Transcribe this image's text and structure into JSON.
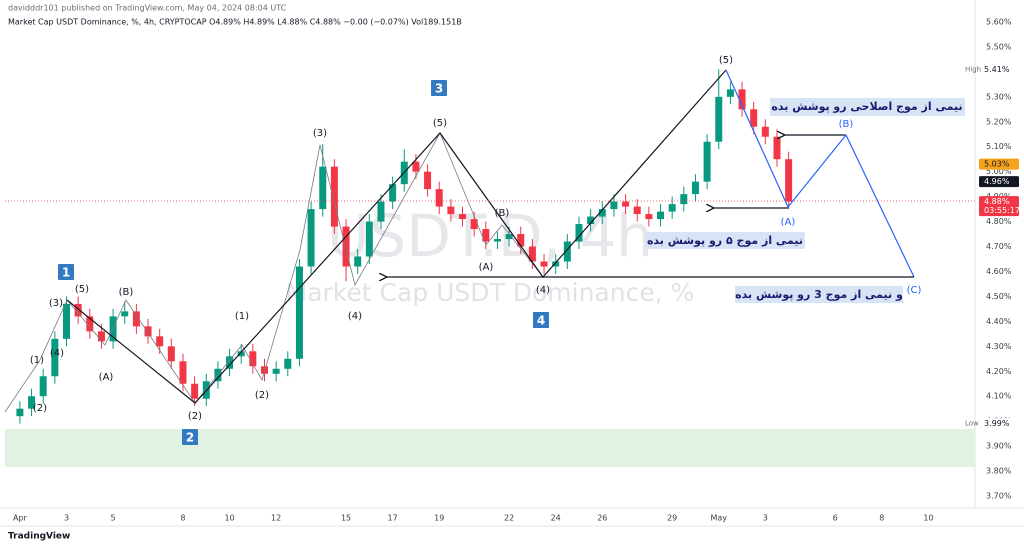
{
  "chart_data": {
    "type": "candlestick",
    "header": "davidddr101 published on TradingView.com, May 04, 2024 08:04 UTC",
    "legend": "Market Cap USDT Dominance, %, 4h, CRYPTOCAP  O4.89%  H4.89%  L4.88%  C4.88%  −0.00 (−0.07%)  Vol189.151B",
    "watermark": {
      "symbol": "USDT.D, 4h",
      "description": "Market Cap USDT Dominance, %"
    },
    "logo": "TradingView",
    "up_color": "#089981",
    "down_color": "#f23645",
    "x": [
      0,
      0.5,
      1,
      1.5,
      2,
      2.5,
      3,
      3.5,
      4,
      4.5,
      5,
      5.5,
      6,
      6.5,
      7,
      7.5,
      8,
      8.5,
      9,
      9.5,
      10,
      10.5,
      11,
      11.5,
      12,
      12.5,
      13,
      13.5,
      14,
      14.5,
      15,
      15.5,
      16,
      16.5,
      17,
      17.5,
      18,
      18.5,
      19,
      19.5,
      20,
      20.5,
      21,
      21.5,
      22,
      22.5,
      23,
      23.5,
      24,
      24.5,
      25,
      25.5,
      26,
      26.5,
      27,
      27.5,
      28,
      28.5,
      29,
      29.5,
      30,
      30.5,
      31,
      31.5,
      32,
      32.5,
      33
    ],
    "open": [
      4.02,
      4.05,
      4.1,
      4.18,
      4.33,
      4.47,
      4.42,
      4.36,
      4.32,
      4.42,
      4.44,
      4.38,
      4.34,
      4.3,
      4.24,
      4.15,
      4.09,
      4.16,
      4.21,
      4.26,
      4.28,
      4.22,
      4.19,
      4.21,
      4.25,
      4.62,
      4.85,
      5.02,
      4.78,
      4.62,
      4.66,
      4.8,
      4.88,
      4.95,
      5.04,
      5.0,
      4.93,
      4.86,
      4.83,
      4.81,
      4.77,
      4.72,
      4.73,
      4.75,
      4.7,
      4.64,
      4.62,
      4.64,
      4.72,
      4.79,
      4.82,
      4.85,
      4.88,
      4.86,
      4.83,
      4.81,
      4.84,
      4.87,
      4.91,
      4.96,
      5.12,
      5.3,
      5.33,
      5.25,
      5.18,
      5.14,
      5.05
    ],
    "high": [
      4.08,
      4.13,
      4.21,
      4.36,
      4.5,
      4.5,
      4.45,
      4.39,
      4.45,
      4.48,
      4.47,
      4.41,
      4.37,
      4.33,
      4.27,
      4.18,
      4.19,
      4.24,
      4.29,
      4.31,
      4.31,
      4.25,
      4.24,
      4.28,
      4.65,
      4.88,
      5.11,
      5.05,
      4.81,
      4.69,
      4.83,
      4.91,
      4.98,
      5.09,
      5.07,
      5.03,
      4.96,
      4.89,
      4.86,
      4.84,
      4.8,
      4.76,
      4.78,
      4.78,
      4.73,
      4.67,
      4.67,
      4.75,
      4.82,
      4.85,
      4.88,
      4.91,
      4.91,
      4.89,
      4.86,
      4.87,
      4.9,
      4.94,
      4.99,
      5.15,
      5.41,
      5.36,
      5.36,
      5.28,
      5.21,
      5.17,
      5.08
    ],
    "low": [
      3.99,
      4.02,
      4.07,
      4.15,
      4.3,
      4.39,
      4.33,
      4.29,
      4.29,
      4.39,
      4.35,
      4.31,
      4.27,
      4.21,
      4.12,
      4.06,
      4.06,
      4.13,
      4.18,
      4.23,
      4.19,
      4.16,
      4.16,
      4.18,
      4.22,
      4.59,
      4.82,
      4.75,
      4.56,
      4.59,
      4.63,
      4.77,
      4.85,
      4.92,
      4.97,
      4.9,
      4.83,
      4.8,
      4.78,
      4.74,
      4.69,
      4.69,
      4.7,
      4.67,
      4.61,
      4.59,
      4.59,
      4.61,
      4.69,
      4.76,
      4.79,
      4.82,
      4.83,
      4.8,
      4.78,
      4.78,
      4.81,
      4.84,
      4.88,
      4.93,
      5.09,
      5.27,
      5.22,
      5.15,
      5.11,
      5.02,
      4.85
    ],
    "close": [
      4.05,
      4.1,
      4.18,
      4.33,
      4.47,
      4.42,
      4.36,
      4.32,
      4.42,
      4.44,
      4.38,
      4.34,
      4.3,
      4.24,
      4.15,
      4.09,
      4.16,
      4.21,
      4.26,
      4.28,
      4.22,
      4.19,
      4.21,
      4.25,
      4.62,
      4.85,
      5.02,
      4.78,
      4.62,
      4.66,
      4.8,
      4.88,
      4.95,
      5.04,
      5.0,
      4.93,
      4.86,
      4.83,
      4.81,
      4.77,
      4.72,
      4.73,
      4.75,
      4.7,
      4.64,
      4.62,
      4.64,
      4.72,
      4.79,
      4.82,
      4.85,
      4.88,
      4.86,
      4.83,
      4.81,
      4.84,
      4.87,
      4.91,
      4.96,
      5.12,
      5.3,
      5.33,
      5.25,
      5.18,
      5.14,
      5.05,
      4.88
    ],
    "xlim": [
      -0.64,
      41.0
    ],
    "xticks": [
      {
        "value": 0,
        "label": "Apr"
      },
      {
        "value": 2,
        "label": "3"
      },
      {
        "value": 4,
        "label": "5"
      },
      {
        "value": 7,
        "label": "8"
      },
      {
        "value": 9,
        "label": "10"
      },
      {
        "value": 11,
        "label": "12"
      },
      {
        "value": 14,
        "label": "15"
      },
      {
        "value": 16,
        "label": "17"
      },
      {
        "value": 18,
        "label": "19"
      },
      {
        "value": 21,
        "label": "22"
      },
      {
        "value": 23,
        "label": "24"
      },
      {
        "value": 25,
        "label": "26"
      },
      {
        "value": 28,
        "label": "29"
      },
      {
        "value": 30,
        "label": "May"
      },
      {
        "value": 32,
        "label": "3"
      },
      {
        "value": 35,
        "label": "6"
      },
      {
        "value": 37,
        "label": "8"
      },
      {
        "value": 39,
        "label": "10"
      }
    ],
    "ylim": [
      3.652,
      5.668
    ],
    "yticks": [
      {
        "value": 3.7,
        "label": "3.70%"
      },
      {
        "value": 3.8,
        "label": "3.80%"
      },
      {
        "value": 3.9,
        "label": "3.90%"
      },
      {
        "value": 4.0,
        "label": "4.00%"
      },
      {
        "value": 4.1,
        "label": "4.10%"
      },
      {
        "value": 4.2,
        "label": "4.20%"
      },
      {
        "value": 4.3,
        "label": "4.30%"
      },
      {
        "value": 4.4,
        "label": "4.40%"
      },
      {
        "value": 4.5,
        "label": "4.50%"
      },
      {
        "value": 4.6,
        "label": "4.60%"
      },
      {
        "value": 4.7,
        "label": "4.70%"
      },
      {
        "value": 4.8,
        "label": "4.80%"
      },
      {
        "value": 4.9,
        "label": "4.90%"
      },
      {
        "value": 5.0,
        "label": "5.00%"
      },
      {
        "value": 5.1,
        "label": "5.10%"
      },
      {
        "value": 5.2,
        "label": "5.20%"
      },
      {
        "value": 5.3,
        "label": "5.30%"
      },
      {
        "value": 5.4,
        "label": "5.40%"
      },
      {
        "value": 5.5,
        "label": "5.50%"
      },
      {
        "value": 5.6,
        "label": "5.60%"
      }
    ],
    "price_labels": [
      {
        "tag": "High",
        "value": 5.41,
        "label": "5.41%",
        "color": "#ffffff",
        "text_color": "#131722"
      },
      {
        "value": 5.03,
        "label": "5.03%",
        "color": "#f7a21b",
        "text_color": "#131722"
      },
      {
        "value": 4.96,
        "label": "4.96%",
        "color": "#131722",
        "text_color": "#ffffff"
      },
      {
        "value": 4.88,
        "label": "4.88%",
        "countdown": "03:55:17",
        "color": "#f23645",
        "text_color": "#ffffff"
      },
      {
        "tag": "Low",
        "value": 3.99,
        "label": "3.99%",
        "color": "#ffffff",
        "text_color": "#131722"
      }
    ],
    "wave_labels": [
      "(1)",
      "(2)",
      "(3)",
      "(4)",
      "(5)",
      "(A)",
      "(B)",
      "(2)",
      "(1)",
      "(2)",
      "(3)",
      "(4)",
      "(5)",
      "(A)",
      "(B)",
      "(4)",
      "(5)",
      "(A)",
      "(B)",
      "(C)"
    ],
    "wave_boxes": [
      "1",
      "2",
      "3",
      "4"
    ],
    "notes": [
      "نیمی از موج اصلاحی  رو پوشش بده",
      "نیمی از موج ۵ رو پوشش بده",
      "و نیمی از موج 3 رو پوشش بده"
    ]
  }
}
